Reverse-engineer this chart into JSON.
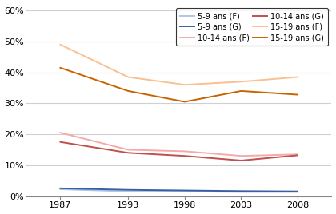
{
  "years": [
    1987,
    1993,
    1998,
    2003,
    2008
  ],
  "series": {
    "5-9 ans (F)": [
      0.022,
      0.015,
      0.015,
      0.013,
      0.013
    ],
    "5-9 ans (G)": [
      0.025,
      0.02,
      0.018,
      0.016,
      0.015
    ],
    "10-14 ans (F)": [
      0.205,
      0.15,
      0.145,
      0.13,
      0.135
    ],
    "10-14 ans (G)": [
      0.175,
      0.14,
      0.13,
      0.115,
      0.132
    ],
    "15-19 ans (F)": [
      0.49,
      0.385,
      0.36,
      0.37,
      0.385
    ],
    "15-19 ans (G)": [
      0.415,
      0.34,
      0.305,
      0.34,
      0.328
    ]
  },
  "colors": {
    "5-9 ans (F)": "#aec6e8",
    "5-9 ans (G)": "#3a5fa0",
    "10-14 ans (F)": "#f4aaaa",
    "10-14 ans (G)": "#c0504d",
    "15-19 ans (F)": "#fac090",
    "15-19 ans (G)": "#c86400"
  },
  "ylim": [
    0,
    0.62
  ],
  "yticks": [
    0.0,
    0.1,
    0.2,
    0.3,
    0.4,
    0.5,
    0.6
  ],
  "ytick_labels": [
    "0%",
    "10%",
    "20%",
    "30%",
    "40%",
    "50%",
    "60%"
  ],
  "xlim": [
    1984,
    2011
  ],
  "legend_order": [
    "5-9 ans (F)",
    "5-9 ans (G)",
    "10-14 ans (F)",
    "10-14 ans (G)",
    "15-19 ans (F)",
    "15-19 ans (G)"
  ]
}
